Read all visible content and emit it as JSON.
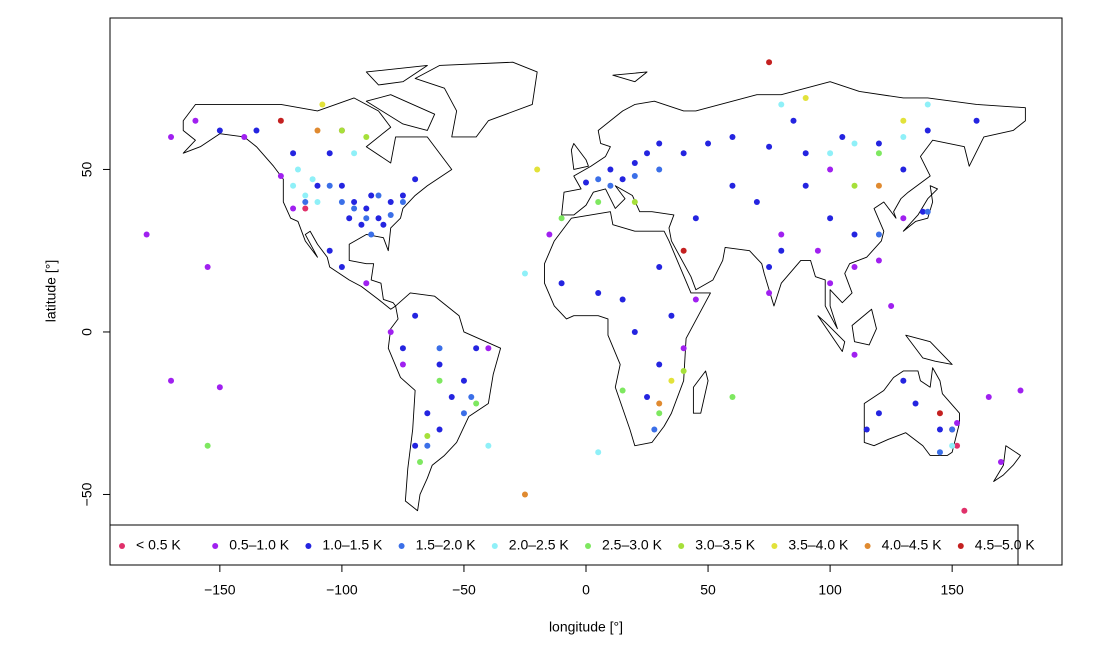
{
  "chart_data": {
    "type": "scatter",
    "x_label": "longitude [°]",
    "y_label": "latitude [°]",
    "xlim": [
      -195,
      195
    ],
    "ylim": [
      -71.7,
      96.6
    ],
    "xticks": [
      {
        "value": -150,
        "label": "−150"
      },
      {
        "value": -100,
        "label": "−100"
      },
      {
        "value": -50,
        "label": "−50"
      },
      0,
      50,
      100,
      150
    ],
    "yticks": [
      {
        "value": -50,
        "label": "−50"
      },
      0,
      50
    ],
    "legend": "bottom",
    "series": [
      {
        "name": "< 0.5 K",
        "color": "#e0306a",
        "x": [
          150,
          -100,
          152,
          -115,
          155
        ],
        "y": [
          -30,
          62,
          -35,
          38,
          -55
        ]
      },
      {
        "name": "0.5–1.0 K",
        "color": "#a020f0",
        "x": [
          -160,
          -170,
          -155,
          -140,
          -170,
          -150,
          165,
          170,
          178,
          120,
          110,
          75,
          80,
          100,
          95,
          -80,
          -75,
          -90,
          -40,
          40,
          45,
          100,
          130,
          -180,
          -15,
          152,
          -120,
          -125,
          110,
          125
        ],
        "y": [
          65,
          60,
          20,
          60,
          -15,
          -17,
          -20,
          -40,
          -18,
          22,
          20,
          12,
          30,
          15,
          25,
          0,
          -10,
          15,
          -5,
          -5,
          10,
          50,
          35,
          30,
          30,
          -28,
          38,
          48,
          -7,
          8
        ]
      },
      {
        "name": "1.0–1.5 K",
        "color": "#2424e0",
        "x": [
          -85,
          -90,
          -80,
          -95,
          -88,
          -83,
          -92,
          -75,
          -100,
          -97,
          -110,
          -120,
          -105,
          -70,
          -135,
          -150,
          -100,
          -105,
          -60,
          -50,
          -45,
          -65,
          -70,
          -60,
          -75,
          -70,
          -55,
          10,
          20,
          25,
          30,
          15,
          40,
          0,
          50,
          60,
          75,
          90,
          105,
          120,
          130,
          85,
          140,
          160,
          80,
          75,
          100,
          110,
          90,
          70,
          60,
          45,
          15,
          20,
          30,
          25,
          35,
          5,
          -10,
          30,
          120,
          135,
          145,
          130,
          115,
          138
        ],
        "y": [
          35,
          38,
          40,
          40,
          42,
          33,
          33,
          42,
          45,
          35,
          45,
          55,
          55,
          47,
          62,
          62,
          20,
          25,
          -10,
          -15,
          -5,
          -25,
          -35,
          -30,
          -5,
          5,
          -20,
          50,
          52,
          55,
          58,
          47,
          55,
          46,
          58,
          60,
          57,
          55,
          60,
          58,
          50,
          65,
          62,
          65,
          25,
          20,
          35,
          30,
          45,
          40,
          45,
          35,
          10,
          0,
          -10,
          -20,
          5,
          12,
          15,
          20,
          -25,
          -22,
          -30,
          -15,
          -30,
          37
        ]
      },
      {
        "name": "1.5–2.0 K",
        "color": "#3b6fe8",
        "x": [
          -95,
          -100,
          -90,
          -80,
          -105,
          -85,
          -115,
          -75,
          10,
          5,
          20,
          30,
          -50,
          -47,
          -60,
          150,
          145,
          -65,
          28,
          140,
          -88,
          120
        ],
        "y": [
          38,
          40,
          35,
          36,
          45,
          42,
          40,
          40,
          45,
          47,
          48,
          50,
          -25,
          -20,
          -5,
          -30,
          -37,
          -35,
          -30,
          37,
          30,
          30
        ]
      },
      {
        "name": "2.0–2.5 K",
        "color": "#8ff0f8",
        "x": [
          -115,
          -120,
          -110,
          -118,
          -112,
          100,
          110,
          130,
          140,
          -40,
          -25,
          -95,
          80,
          150,
          5
        ],
        "y": [
          42,
          45,
          40,
          50,
          47,
          55,
          58,
          60,
          70,
          -35,
          18,
          55,
          70,
          -35,
          -37
        ]
      },
      {
        "name": "2.5–3.0 K",
        "color": "#7ee860",
        "x": [
          -155,
          -10,
          30,
          -60,
          5,
          -68,
          120,
          -45,
          15,
          60
        ],
        "y": [
          -35,
          35,
          -25,
          -15,
          40,
          -40,
          55,
          -22,
          -18,
          -20
        ]
      },
      {
        "name": "3.0–3.5 K",
        "color": "#a6e03a",
        "x": [
          -100,
          -90,
          20,
          40,
          -65,
          110
        ],
        "y": [
          62,
          60,
          40,
          -12,
          -32,
          45
        ]
      },
      {
        "name": "3.5–4.0 K",
        "color": "#e2e23a",
        "x": [
          -20,
          130,
          -108,
          90,
          35
        ],
        "y": [
          50,
          65,
          70,
          72,
          -15
        ]
      },
      {
        "name": "4.0–4.5 K",
        "color": "#e08a30",
        "x": [
          -25,
          30,
          -110,
          120
        ],
        "y": [
          -50,
          -22,
          62,
          45
        ]
      },
      {
        "name": "4.5–5.0 K",
        "color": "#c42020",
        "x": [
          75,
          -125,
          145,
          40
        ],
        "y": [
          83,
          65,
          -25,
          25
        ]
      }
    ]
  }
}
